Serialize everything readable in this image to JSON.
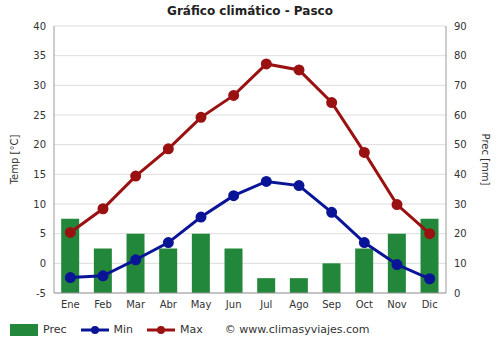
{
  "chart_data": {
    "type": "combo",
    "title": "Gráfico climático - Pasco",
    "categories": [
      "Ene",
      "Feb",
      "Mar",
      "Abr",
      "May",
      "Jun",
      "Jul",
      "Ago",
      "Sep",
      "Oct",
      "Nov",
      "Dic"
    ],
    "series": [
      {
        "name": "Prec",
        "type": "bar",
        "axis": "y2",
        "color": "#22873a",
        "values": [
          25,
          15,
          20,
          15,
          20,
          15,
          5,
          5,
          10,
          15,
          20,
          25
        ]
      },
      {
        "name": "Min",
        "type": "line",
        "color": "#0a1496",
        "marker": "circle",
        "values": [
          -2.4,
          -2.1,
          0.6,
          3.5,
          7.8,
          11.4,
          13.8,
          13.1,
          8.6,
          3.5,
          -0.2,
          -2.6
        ]
      },
      {
        "name": "Max",
        "type": "line",
        "color": "#991111",
        "marker": "circle",
        "values": [
          5.2,
          9.2,
          14.7,
          19.3,
          24.6,
          28.3,
          33.6,
          32.6,
          27.1,
          18.7,
          9.9,
          5.0
        ]
      }
    ],
    "y_label": "Temp [°C]",
    "y2_label": "Prec [mm]",
    "ylim": [
      -5,
      40
    ],
    "yticks": [
      -5,
      0,
      5,
      10,
      15,
      20,
      25,
      30,
      35,
      40
    ],
    "y2lim": [
      0,
      90
    ],
    "y2ticks": [
      0,
      10,
      20,
      30,
      40,
      50,
      60,
      70,
      80,
      90
    ],
    "grid": true,
    "annotations": [
      "© www.climasyviajes.com"
    ]
  }
}
